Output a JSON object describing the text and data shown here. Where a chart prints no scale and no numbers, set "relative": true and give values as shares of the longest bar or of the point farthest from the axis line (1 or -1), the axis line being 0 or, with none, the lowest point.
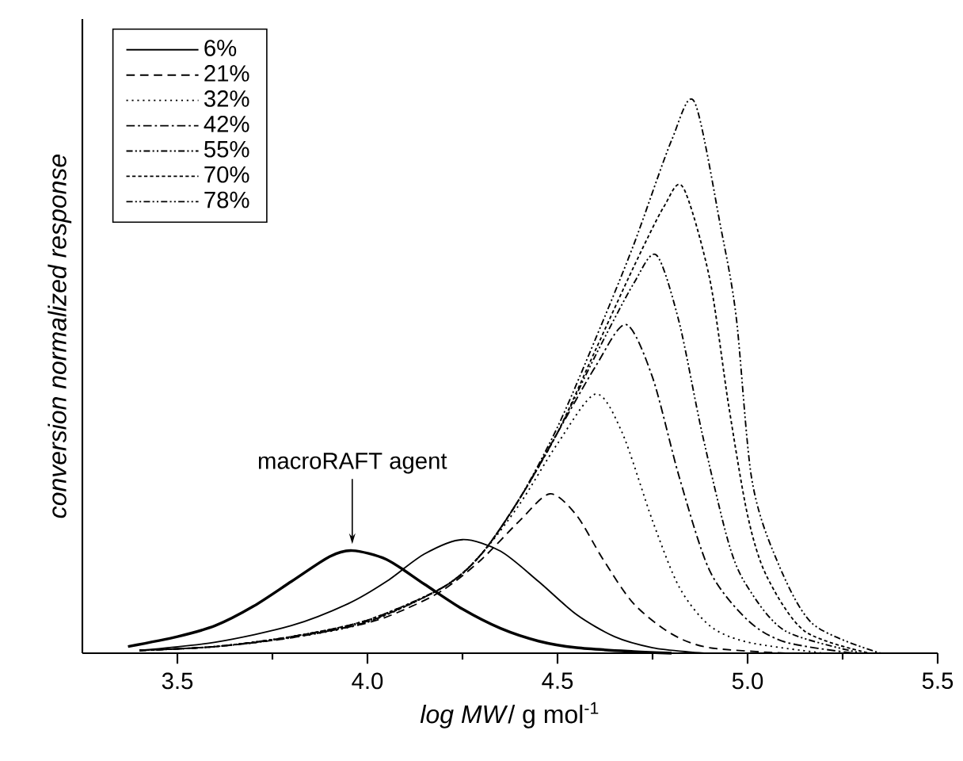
{
  "chart_data": {
    "type": "line",
    "relative": true,
    "xlabel": "*log MW*/ g mol$^{-1}$",
    "ylabel": "conversion normalized response",
    "xlim": [
      3.25,
      5.5
    ],
    "xticks": [
      3.5,
      {
        "value": 4.0,
        "label": "4.0"
      },
      4.5,
      {
        "value": 5.0,
        "label": "5.0"
      },
      5.5
    ],
    "legend": "top left",
    "grid": false,
    "marker": "none",
    "annotations": [
      {
        "text": "macroRAFT agent",
        "x": 3.96,
        "y": 0.186
      }
    ],
    "series": [
      {
        "color": "#000000",
        "line_style": "solid",
        "x": [
          3.37,
          3.5,
          3.6,
          3.7,
          3.8,
          3.9,
          3.96,
          4.05,
          4.15,
          4.25,
          4.35,
          4.45,
          4.55,
          4.7,
          4.8
        ],
        "values": [
          0.012,
          0.03,
          0.05,
          0.085,
          0.13,
          0.175,
          0.186,
          0.17,
          0.125,
          0.08,
          0.045,
          0.022,
          0.01,
          0.003,
          0
        ]
      },
      {
        "name": "6%",
        "color": "#000000",
        "line_style": "solid",
        "x": [
          3.4,
          3.6,
          3.8,
          3.95,
          4.05,
          4.15,
          4.25,
          4.35,
          4.45,
          4.55,
          4.65,
          4.75,
          4.85,
          4.9
        ],
        "values": [
          0.005,
          0.02,
          0.05,
          0.09,
          0.13,
          0.18,
          0.206,
          0.185,
          0.13,
          0.07,
          0.03,
          0.01,
          0.002,
          0
        ]
      },
      {
        "name": "21%",
        "color": "#000000",
        "line_style": "dashed",
        "x": [
          3.4,
          3.6,
          3.8,
          4.0,
          4.1,
          4.2,
          4.3,
          4.4,
          4.48,
          4.55,
          4.62,
          4.7,
          4.8,
          4.9,
          5.1
        ],
        "values": [
          0.005,
          0.012,
          0.028,
          0.055,
          0.08,
          0.115,
          0.17,
          0.24,
          0.289,
          0.25,
          0.17,
          0.09,
          0.035,
          0.01,
          0
        ]
      },
      {
        "name": "32%",
        "color": "#000000",
        "line_style": "dotted",
        "x": [
          3.4,
          3.6,
          3.8,
          4.0,
          4.2,
          4.3,
          4.4,
          4.5,
          4.6,
          4.67,
          4.75,
          4.82,
          4.9,
          5.0,
          5.2
        ],
        "values": [
          0.005,
          0.012,
          0.028,
          0.056,
          0.12,
          0.18,
          0.27,
          0.38,
          0.47,
          0.4,
          0.24,
          0.12,
          0.05,
          0.02,
          0
        ]
      },
      {
        "name": "42%",
        "color": "#000000",
        "line_style": "dashdot",
        "x": [
          3.4,
          3.6,
          3.8,
          4.0,
          4.2,
          4.3,
          4.4,
          4.5,
          4.6,
          4.68,
          4.75,
          4.82,
          4.9,
          5.0,
          5.1,
          5.28
        ],
        "values": [
          0.005,
          0.012,
          0.029,
          0.057,
          0.12,
          0.18,
          0.28,
          0.4,
          0.52,
          0.596,
          0.5,
          0.32,
          0.15,
          0.06,
          0.02,
          0
        ]
      },
      {
        "name": "55%",
        "color": "#000000",
        "line_style": "dashdotdot",
        "x": [
          3.4,
          3.6,
          3.8,
          4.0,
          4.2,
          4.3,
          4.4,
          4.5,
          4.6,
          4.7,
          4.76,
          4.82,
          4.88,
          4.95,
          5.0,
          5.1,
          5.3
        ],
        "values": [
          0.005,
          0.012,
          0.03,
          0.058,
          0.12,
          0.18,
          0.28,
          0.4,
          0.54,
          0.67,
          0.722,
          0.6,
          0.4,
          0.2,
          0.12,
          0.04,
          0
        ]
      },
      {
        "name": "70%",
        "color": "#000000",
        "line_style": "shortdash",
        "x": [
          3.4,
          3.6,
          3.8,
          4.0,
          4.2,
          4.3,
          4.4,
          4.5,
          4.6,
          4.7,
          4.78,
          4.83,
          4.9,
          4.95,
          5.0,
          5.05,
          5.15,
          5.32
        ],
        "values": [
          0.005,
          0.012,
          0.03,
          0.06,
          0.12,
          0.18,
          0.28,
          0.4,
          0.55,
          0.7,
          0.81,
          0.845,
          0.68,
          0.45,
          0.25,
          0.14,
          0.04,
          0
        ]
      },
      {
        "name": "78%",
        "color": "#000000",
        "line_style": "dashdotdot",
        "x": [
          3.4,
          3.6,
          3.8,
          4.0,
          4.2,
          4.3,
          4.4,
          4.5,
          4.6,
          4.7,
          4.8,
          4.86,
          4.93,
          4.97,
          5.01,
          5.07,
          5.17,
          5.35
        ],
        "values": [
          0.005,
          0.012,
          0.03,
          0.06,
          0.12,
          0.18,
          0.28,
          0.41,
          0.57,
          0.74,
          0.93,
          1,
          0.77,
          0.61,
          0.32,
          0.18,
          0.054,
          0
        ]
      }
    ]
  }
}
